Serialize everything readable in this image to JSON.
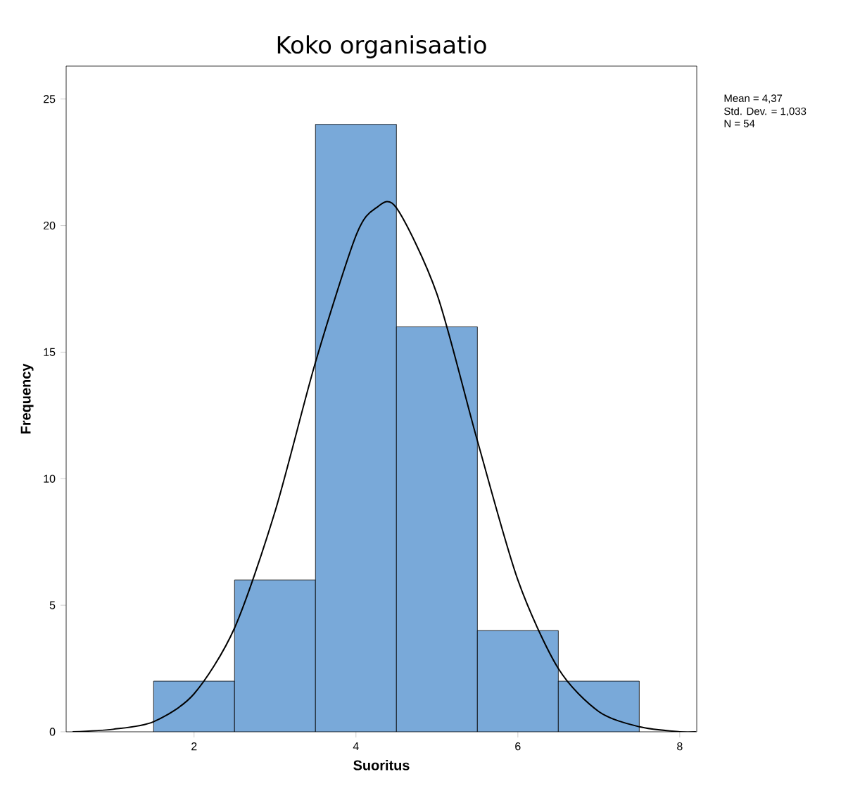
{
  "chart_data": {
    "type": "histogram",
    "title": "Koko organisaatio",
    "xlabel": "Suoritus",
    "ylabel": "Frequency",
    "xlim": [
      0.42,
      8.21
    ],
    "ylim": [
      0,
      26.3
    ],
    "xticks": [
      2,
      4,
      6,
      8
    ],
    "yticks": [
      0,
      5,
      10,
      15,
      20,
      25
    ],
    "grid": false,
    "annotations": [
      "Mean = 4,37",
      "Std. Dev. = 1,033",
      "N = 54"
    ],
    "series": [
      {
        "color": "#79a9d9",
        "bins": [
          1.5,
          2.5,
          3.5,
          4.5,
          5.5,
          6.5,
          7.5
        ],
        "values": [
          2,
          6,
          24,
          16,
          4,
          2
        ]
      },
      {
        "type": "line",
        "color": "#000000",
        "x": [
          0.5,
          1.0,
          1.5,
          2.0,
          2.5,
          3.0,
          3.5,
          4.0,
          4.25,
          4.5,
          5.0,
          5.5,
          6.0,
          6.5,
          7.0,
          7.5,
          8.0,
          8.2
        ],
        "values": [
          0.0,
          0.1,
          0.4,
          1.5,
          4.1,
          8.7,
          14.6,
          19.6,
          20.7,
          20.7,
          17.3,
          11.5,
          6.0,
          2.5,
          0.8,
          0.2,
          0.0,
          0.0
        ]
      }
    ]
  }
}
